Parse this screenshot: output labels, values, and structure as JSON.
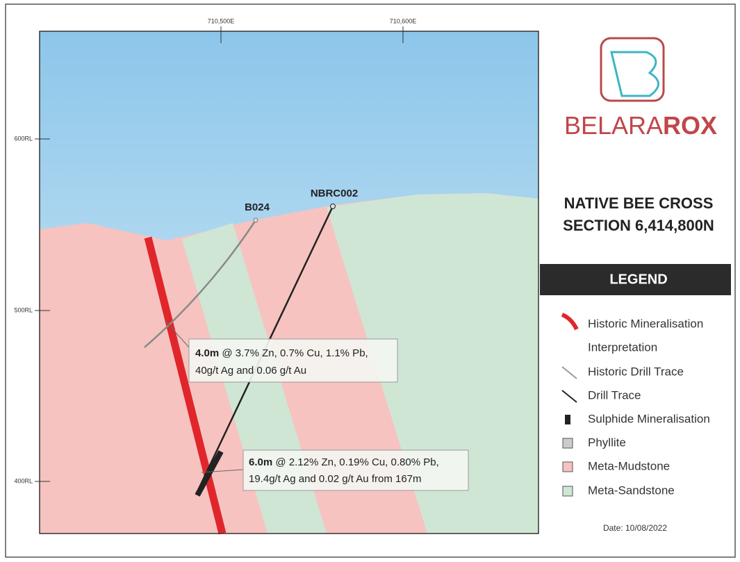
{
  "section": {
    "easting_ticks": [
      "710,500E",
      "710,600E"
    ],
    "rl_ticks": [
      "600RL",
      "500RL",
      "400RL"
    ],
    "holes": [
      "B024",
      "NBRC002"
    ],
    "intercepts": [
      {
        "bold": "4.0m",
        "rest": " @ 3.7% Zn, 0.7% Cu, 1.1% Pb,",
        "line2": "40g/t Ag and 0.06 g/t Au"
      },
      {
        "bold": "6.0m",
        "rest": " @ 2.12% Zn, 0.19% Cu, 0.80% Pb,",
        "line2": "19.4g/t Ag and 0.02 g/t Au from 167m"
      }
    ]
  },
  "logo": {
    "light": "BELARA",
    "bold": "ROX"
  },
  "title": [
    "NATIVE BEE CROSS",
    "SECTION 6,414,800N"
  ],
  "legend": {
    "title": "LEGEND",
    "items": [
      [
        "Historic Mineralisation",
        "Interpretation"
      ],
      [
        "Historic Drill Trace"
      ],
      [
        "Drill Trace"
      ],
      [
        "Sulphide Mineralisation"
      ],
      [
        "Phyllite"
      ],
      [
        "Meta-Mudstone"
      ],
      [
        "Meta-Sandstone"
      ]
    ]
  },
  "date": "Date: 10/08/2022"
}
